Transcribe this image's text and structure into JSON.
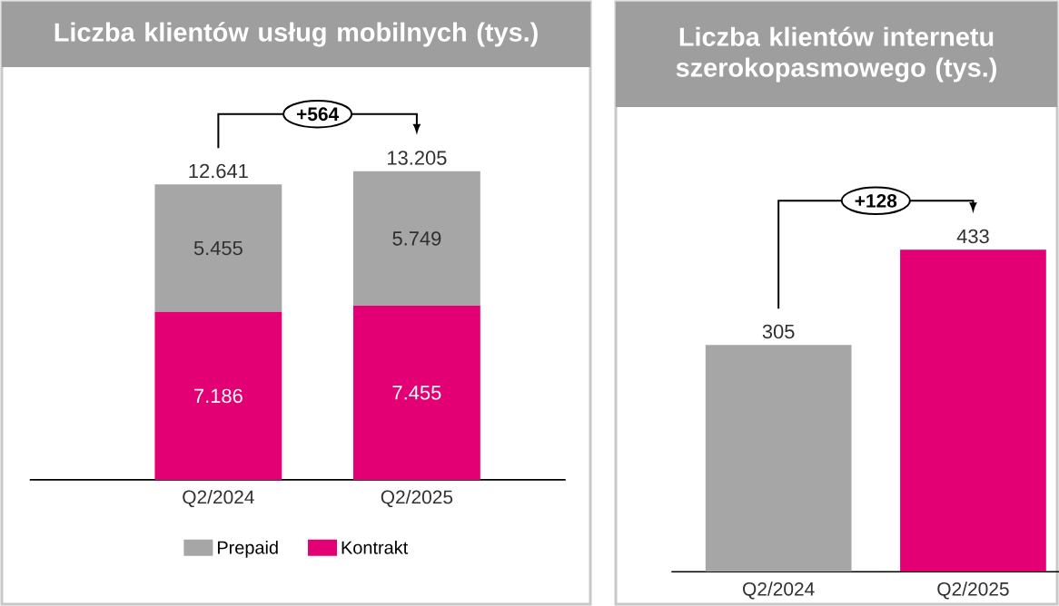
{
  "chart_data": [
    {
      "type": "bar",
      "title": "Liczba klientów usług mobilnych (tys.)",
      "categories": [
        "Q2/2024",
        "Q2/2025"
      ],
      "stacked": true,
      "legend": "bottom",
      "series": [
        {
          "name": "Kontrakt",
          "color": "#e20074",
          "values": [
            7186,
            7455
          ],
          "value_labels": [
            "7.186",
            "7.455"
          ]
        },
        {
          "name": "Prepaid",
          "color": "#a6a6a6",
          "values": [
            5455,
            5749
          ],
          "value_labels": [
            "5.455",
            "5.749"
          ]
        }
      ],
      "totals": [
        "12.641",
        "13.205"
      ],
      "annotations": [
        "+564"
      ]
    },
    {
      "type": "bar",
      "title": "Liczba klientów internetu szerokopasmowego (tys.)",
      "categories": [
        "Q2/2024",
        "Q2/2025"
      ],
      "values": [
        305,
        433
      ],
      "colors": [
        "#a6a6a6",
        "#e20074"
      ],
      "data_labels": true,
      "annotations": [
        "+128"
      ]
    }
  ]
}
